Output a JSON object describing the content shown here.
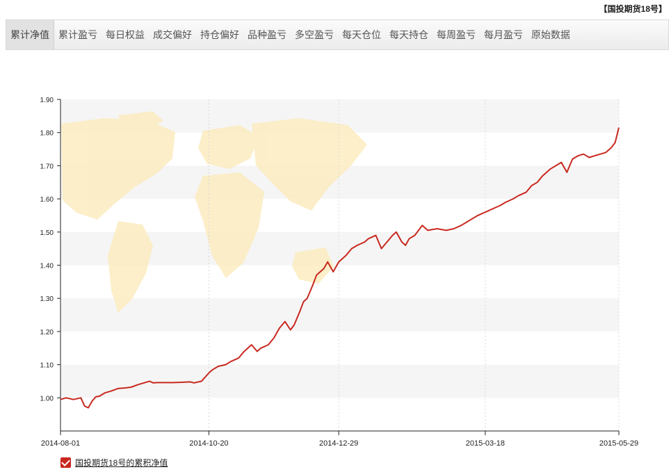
{
  "fund_title": "【国投期货18号】",
  "tabs": [
    {
      "label": "累计净值",
      "active": true
    },
    {
      "label": "累计盈亏",
      "active": false
    },
    {
      "label": "每日权益",
      "active": false
    },
    {
      "label": "成交偏好",
      "active": false
    },
    {
      "label": "持仓偏好",
      "active": false
    },
    {
      "label": "品种盈亏",
      "active": false
    },
    {
      "label": "多空盈亏",
      "active": false
    },
    {
      "label": "每天仓位",
      "active": false
    },
    {
      "label": "每天持仓",
      "active": false
    },
    {
      "label": "每周盈亏",
      "active": false
    },
    {
      "label": "每月盈亏",
      "active": false
    },
    {
      "label": "原始数据",
      "active": false
    }
  ],
  "legend": {
    "label": "国投期货18号的累积净值"
  },
  "colors": {
    "line": "#c8281e",
    "band": "#f5f5f5",
    "map": "#fcecc0"
  },
  "chart_data": {
    "type": "line",
    "ylim": [
      0.9,
      1.9
    ],
    "yticks": [
      "1.00",
      "1.10",
      "1.20",
      "1.30",
      "1.40",
      "1.50",
      "1.60",
      "1.70",
      "1.80",
      "1.90"
    ],
    "yticks_values": [
      1.0,
      1.1,
      1.2,
      1.3,
      1.4,
      1.5,
      1.6,
      1.7,
      1.8,
      1.9
    ],
    "xticks": [
      "2014-08-01",
      "2014-10-20",
      "2014-12-29",
      "2015-03-18",
      "2015-05-29"
    ],
    "x_range": [
      "2014-08-01",
      "2015-05-29"
    ],
    "grid": "vertical dashed at x ticks, horizontal alternating bands",
    "legend_position": "bottom-left",
    "series": [
      {
        "name": "国投期货18号的累积净值",
        "x": [
          "2014-08-01",
          "2014-08-04",
          "2014-08-08",
          "2014-08-12",
          "2014-08-14",
          "2014-08-16",
          "2014-08-18",
          "2014-08-20",
          "2014-08-22",
          "2014-08-25",
          "2014-08-28",
          "2014-09-01",
          "2014-09-05",
          "2014-09-08",
          "2014-09-12",
          "2014-09-15",
          "2014-09-18",
          "2014-09-20",
          "2014-09-22",
          "2014-09-24",
          "2014-09-27",
          "2014-10-01",
          "2014-10-10",
          "2014-10-12",
          "2014-10-16",
          "2014-10-20",
          "2014-10-22",
          "2014-10-25",
          "2014-10-29",
          "2014-11-01",
          "2014-11-05",
          "2014-11-08",
          "2014-11-12",
          "2014-11-15",
          "2014-11-17",
          "2014-11-19",
          "2014-11-21",
          "2014-11-24",
          "2014-11-27",
          "2014-11-30",
          "2014-12-03",
          "2014-12-05",
          "2014-12-08",
          "2014-12-10",
          "2014-12-12",
          "2014-12-15",
          "2014-12-17",
          "2014-12-19",
          "2014-12-21",
          "2014-12-23",
          "2014-12-26",
          "2014-12-29",
          "2015-01-02",
          "2015-01-05",
          "2015-01-08",
          "2015-01-12",
          "2015-01-14",
          "2015-01-18",
          "2015-01-21",
          "2015-01-24",
          "2015-01-27",
          "2015-01-29",
          "2015-02-01",
          "2015-02-03",
          "2015-02-05",
          "2015-02-08",
          "2015-02-12",
          "2015-02-15",
          "2015-02-20",
          "2015-02-25",
          "2015-03-01",
          "2015-03-05",
          "2015-03-08",
          "2015-03-11",
          "2015-03-14",
          "2015-03-18",
          "2015-03-22",
          "2015-03-26",
          "2015-03-29",
          "2015-04-02",
          "2015-04-05",
          "2015-04-09",
          "2015-04-12",
          "2015-04-15",
          "2015-04-18",
          "2015-04-22",
          "2015-04-25",
          "2015-04-28",
          "2015-05-01",
          "2015-05-04",
          "2015-05-07",
          "2015-05-10",
          "2015-05-13",
          "2015-05-16",
          "2015-05-19",
          "2015-05-22",
          "2015-05-25",
          "2015-05-27",
          "2015-05-29"
        ],
        "y": [
          0.995,
          1.0,
          0.995,
          1.0,
          0.975,
          0.97,
          0.99,
          1.003,
          1.005,
          1.015,
          1.02,
          1.028,
          1.03,
          1.032,
          1.04,
          1.045,
          1.05,
          1.045,
          1.046,
          1.046,
          1.046,
          1.046,
          1.048,
          1.045,
          1.05,
          1.075,
          1.085,
          1.095,
          1.1,
          1.11,
          1.12,
          1.14,
          1.16,
          1.14,
          1.15,
          1.155,
          1.16,
          1.18,
          1.21,
          1.23,
          1.205,
          1.22,
          1.26,
          1.29,
          1.3,
          1.34,
          1.37,
          1.38,
          1.39,
          1.41,
          1.38,
          1.41,
          1.43,
          1.45,
          1.46,
          1.47,
          1.48,
          1.49,
          1.45,
          1.47,
          1.49,
          1.5,
          1.47,
          1.46,
          1.48,
          1.49,
          1.52,
          1.505,
          1.51,
          1.505,
          1.51,
          1.52,
          1.53,
          1.54,
          1.55,
          1.56,
          1.57,
          1.58,
          1.59,
          1.6,
          1.61,
          1.62,
          1.64,
          1.65,
          1.67,
          1.69,
          1.7,
          1.71,
          1.68,
          1.72,
          1.73,
          1.735,
          1.725,
          1.73,
          1.735,
          1.74,
          1.755,
          1.77,
          1.815
        ]
      }
    ]
  }
}
